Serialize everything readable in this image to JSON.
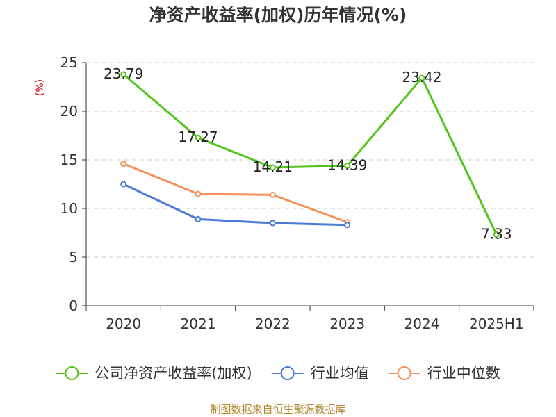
{
  "chart_data": {
    "type": "line",
    "title": "净资产收益率(加权)历年情况(%)",
    "ylabel": "(%)",
    "categories": [
      "2020",
      "2021",
      "2022",
      "2023",
      "2024",
      "2025H1"
    ],
    "ylim": [
      0,
      25
    ],
    "yticks": [
      0,
      5,
      10,
      15,
      20,
      25
    ],
    "grid": true,
    "legend_position": "bottom",
    "series": [
      {
        "name": "公司净资产收益率(加权)",
        "color": "#52c41a",
        "values": [
          23.79,
          17.27,
          14.21,
          14.39,
          23.42,
          7.33
        ],
        "labels": [
          "23.79",
          "17.27",
          "14.21",
          "14.39",
          "23.42",
          "7.33"
        ]
      },
      {
        "name": "行业均值",
        "color": "#4a7bd6",
        "values": [
          12.5,
          8.9,
          8.5,
          8.3,
          null,
          null
        ]
      },
      {
        "name": "行业中位数",
        "color": "#f4905a",
        "values": [
          14.6,
          11.5,
          11.4,
          8.6,
          null,
          null
        ]
      }
    ]
  },
  "source": "制图数据来自恒生聚源数据库"
}
